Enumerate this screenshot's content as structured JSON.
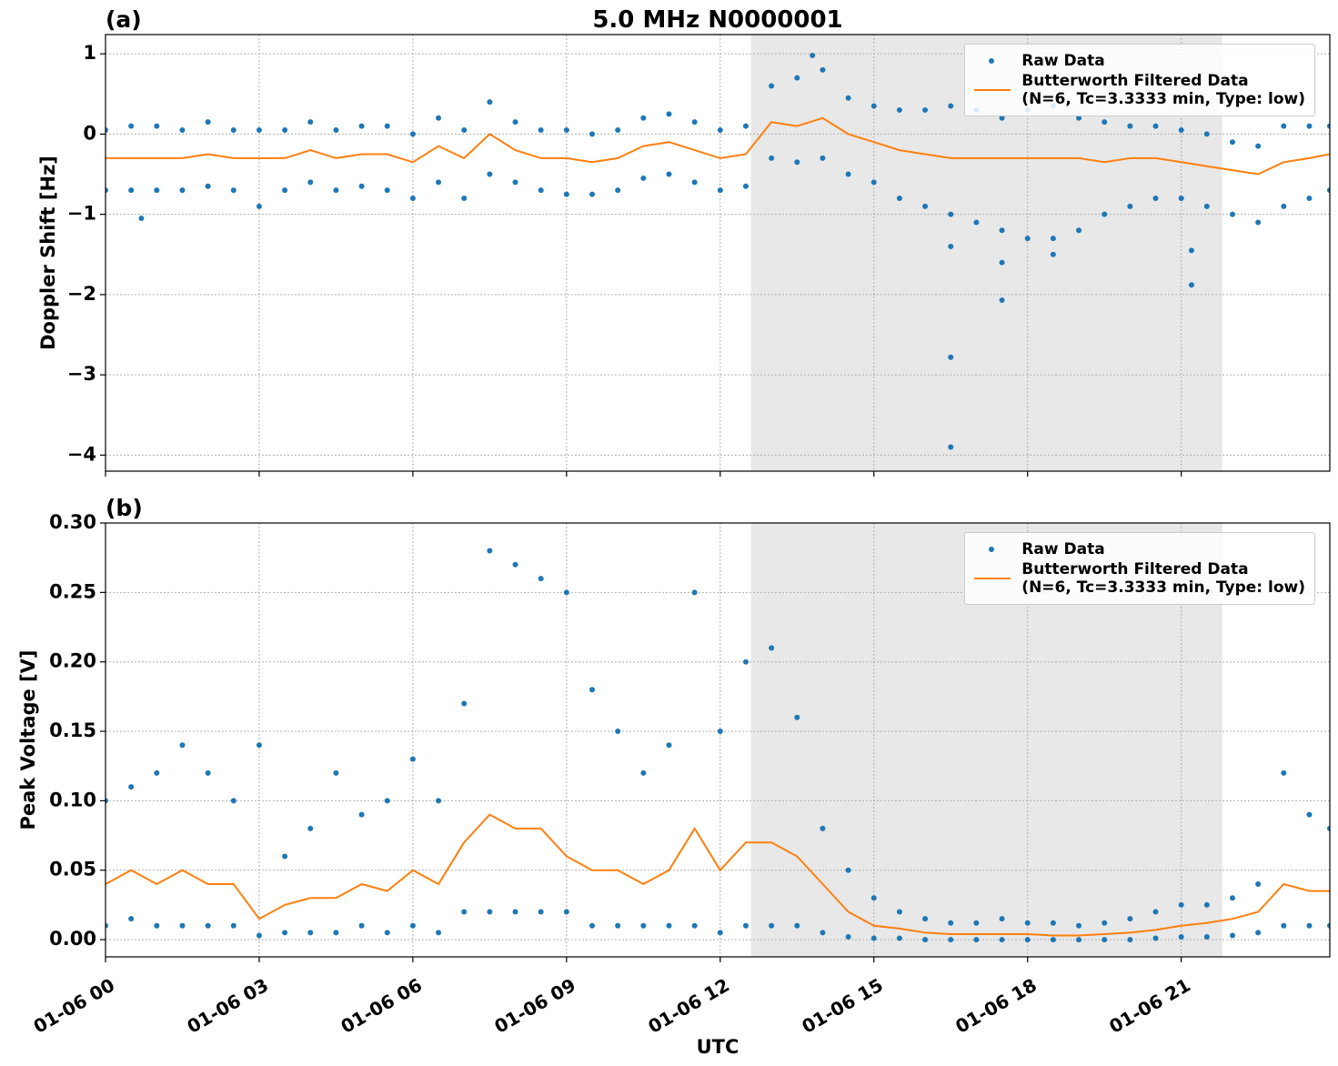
{
  "chart_data": [
    {
      "type": "scatter",
      "title": "5.0 MHz N0000001",
      "panel_label": "(a)",
      "ylabel": "Doppler Shift [Hz]",
      "xlim": [
        0,
        23.9
      ],
      "ylim": [
        -4.2,
        1.24
      ],
      "xticks": [
        0,
        3,
        6,
        9,
        12,
        15,
        18,
        21
      ],
      "yticks": [
        {
          "value": -4,
          "label": "−4"
        },
        {
          "value": -3,
          "label": "−3"
        },
        {
          "value": -2,
          "label": "−2"
        },
        {
          "value": -1,
          "label": "−1"
        },
        0,
        1
      ],
      "grid": true,
      "shaded_span": [
        12.6,
        21.8
      ],
      "shade_color": "#e8e8e8",
      "legend": "upper right",
      "series": [
        {
          "name": "Raw Data",
          "style": "scatter",
          "color": "#1f77b4",
          "x": [
            0,
            0.5,
            1,
            1.5,
            2,
            2.5,
            3,
            3.5,
            4,
            4.5,
            5,
            5.5,
            6,
            6.5,
            7,
            7.5,
            8,
            8.5,
            9,
            9.5,
            10,
            10.5,
            11,
            11.5,
            12,
            12.5,
            13,
            13.5,
            14,
            14.5,
            15,
            15.5,
            16,
            16.5,
            17,
            17.5,
            18,
            18.5,
            19,
            19.5,
            20,
            20.5,
            21,
            21.5,
            22,
            22.5,
            23,
            23.5,
            23.9,
            0,
            0.5,
            1,
            1.5,
            2,
            2.5,
            3,
            3.5,
            4,
            4.5,
            5,
            5.5,
            6,
            6.5,
            7,
            7.5,
            8,
            8.5,
            9,
            9.5,
            10,
            10.5,
            11,
            11.5,
            12,
            12.5,
            13,
            13.5,
            14,
            14.5,
            15,
            15.5,
            16,
            16.5,
            17,
            17.5,
            18,
            18.5,
            19,
            19.5,
            20,
            20.5,
            21,
            21.5,
            22,
            22.5,
            23,
            23.5,
            23.9,
            16.5,
            16.5,
            16.5,
            17.5,
            17.5,
            21.2,
            21.2,
            13.8,
            0.7,
            18.5
          ],
          "values": [
            0.05,
            0.1,
            0.1,
            0.05,
            0.15,
            0.05,
            0.05,
            0.05,
            0.15,
            0.05,
            0.1,
            0.1,
            0.0,
            0.2,
            0.05,
            0.4,
            0.15,
            0.05,
            0.05,
            0.0,
            0.05,
            0.2,
            0.25,
            0.15,
            0.05,
            0.1,
            0.6,
            0.7,
            0.8,
            0.45,
            0.35,
            0.3,
            0.3,
            0.35,
            0.3,
            0.2,
            0.3,
            0.35,
            0.2,
            0.15,
            0.1,
            0.1,
            0.05,
            0.0,
            -0.1,
            -0.15,
            0.1,
            0.1,
            0.1,
            -0.7,
            -0.7,
            -0.7,
            -0.7,
            -0.65,
            -0.7,
            -0.9,
            -0.7,
            -0.6,
            -0.7,
            -0.65,
            -0.7,
            -0.8,
            -0.6,
            -0.8,
            -0.5,
            -0.6,
            -0.7,
            -0.75,
            -0.75,
            -0.7,
            -0.55,
            -0.5,
            -0.6,
            -0.7,
            -0.65,
            -0.3,
            -0.35,
            -0.3,
            -0.5,
            -0.6,
            -0.8,
            -0.9,
            -1.0,
            -1.1,
            -1.2,
            -1.3,
            -1.3,
            -1.2,
            -1.0,
            -0.9,
            -0.8,
            -0.8,
            -0.9,
            -1.0,
            -1.1,
            -0.9,
            -0.8,
            -0.7,
            -1.4,
            -2.78,
            -3.9,
            -2.07,
            -1.6,
            -1.88,
            -1.45,
            0.98,
            -1.05,
            -1.5
          ]
        },
        {
          "name": "Butterworth Filtered Data\n(N=6, Tc=3.3333 min, Type: low)",
          "style": "line",
          "color": "#ff7f0e",
          "x": [
            0,
            0.5,
            1,
            1.5,
            2,
            2.5,
            3,
            3.5,
            4,
            4.5,
            5,
            5.5,
            6,
            6.5,
            7,
            7.5,
            8,
            8.5,
            9,
            9.5,
            10,
            10.5,
            11,
            11.5,
            12,
            12.5,
            13,
            13.5,
            14,
            14.5,
            15,
            15.5,
            16,
            16.5,
            17,
            17.5,
            18,
            18.5,
            19,
            19.5,
            20,
            20.5,
            21,
            21.5,
            22,
            22.5,
            23,
            23.5,
            23.9
          ],
          "values": [
            -0.3,
            -0.3,
            -0.3,
            -0.3,
            -0.25,
            -0.3,
            -0.3,
            -0.3,
            -0.2,
            -0.3,
            -0.25,
            -0.25,
            -0.35,
            -0.15,
            -0.3,
            0.0,
            -0.2,
            -0.3,
            -0.3,
            -0.35,
            -0.3,
            -0.15,
            -0.1,
            -0.2,
            -0.3,
            -0.25,
            0.15,
            0.1,
            0.2,
            0.0,
            -0.1,
            -0.2,
            -0.25,
            -0.3,
            -0.3,
            -0.3,
            -0.3,
            -0.3,
            -0.3,
            -0.35,
            -0.3,
            -0.3,
            -0.35,
            -0.4,
            -0.45,
            -0.5,
            -0.35,
            -0.3,
            -0.25
          ]
        }
      ]
    },
    {
      "type": "scatter",
      "panel_label": "(b)",
      "ylabel": "Peak Voltage [V]",
      "xlabel": "UTC",
      "xlim": [
        0,
        23.9
      ],
      "ylim": [
        -0.0124,
        0.3
      ],
      "xticks": [
        {
          "value": 0,
          "label": "01-06 00"
        },
        {
          "value": 3,
          "label": "01-06 03"
        },
        {
          "value": 6,
          "label": "01-06 06"
        },
        {
          "value": 9,
          "label": "01-06 09"
        },
        {
          "value": 12,
          "label": "01-06 12"
        },
        {
          "value": 15,
          "label": "01-06 15"
        },
        {
          "value": 18,
          "label": "01-06 18"
        },
        {
          "value": 21,
          "label": "01-06 21"
        }
      ],
      "yticks": [
        {
          "value": 0,
          "label": "0.00"
        },
        {
          "value": 0.05,
          "label": "0.05"
        },
        {
          "value": 0.1,
          "label": "0.10"
        },
        {
          "value": 0.15,
          "label": "0.15"
        },
        {
          "value": 0.2,
          "label": "0.20"
        },
        {
          "value": 0.25,
          "label": "0.25"
        },
        {
          "value": 0.3,
          "label": "0.30"
        }
      ],
      "grid": true,
      "shaded_span": [
        12.6,
        21.8
      ],
      "shade_color": "#e8e8e8",
      "legend": "upper right",
      "series": [
        {
          "name": "Raw Data",
          "style": "scatter",
          "color": "#1f77b4",
          "x": [
            0,
            0.5,
            1,
            1.5,
            2,
            2.5,
            3,
            3.5,
            4,
            4.5,
            5,
            5.5,
            6,
            6.5,
            7,
            7.5,
            8,
            8.5,
            9,
            9.5,
            10,
            10.5,
            11,
            11.5,
            12,
            12.5,
            13,
            13.5,
            14,
            14.5,
            15,
            15.5,
            16,
            16.5,
            17,
            17.5,
            18,
            18.5,
            19,
            19.5,
            20,
            20.5,
            21,
            21.5,
            22,
            22.5,
            23,
            23.5,
            23.9,
            0,
            0.5,
            1,
            1.5,
            2,
            2.5,
            3,
            3.5,
            4,
            4.5,
            5,
            5.5,
            6,
            6.5,
            7,
            7.5,
            8,
            8.5,
            9,
            9.5,
            10,
            10.5,
            11,
            11.5,
            12,
            12.5,
            13,
            13.5,
            14,
            14.5,
            15,
            15.5,
            16,
            16.5,
            17,
            17.5,
            18,
            18.5,
            19,
            19.5,
            20,
            20.5,
            21,
            21.5,
            22,
            22.5,
            23,
            23.5,
            23.9
          ],
          "values": [
            0.1,
            0.11,
            0.12,
            0.14,
            0.12,
            0.1,
            0.14,
            0.06,
            0.08,
            0.12,
            0.09,
            0.1,
            0.13,
            0.1,
            0.17,
            0.28,
            0.27,
            0.26,
            0.25,
            0.18,
            0.15,
            0.12,
            0.14,
            0.25,
            0.15,
            0.2,
            0.21,
            0.16,
            0.08,
            0.05,
            0.03,
            0.02,
            0.015,
            0.012,
            0.012,
            0.015,
            0.012,
            0.012,
            0.01,
            0.012,
            0.015,
            0.02,
            0.025,
            0.025,
            0.03,
            0.04,
            0.12,
            0.09,
            0.08,
            0.01,
            0.015,
            0.01,
            0.01,
            0.01,
            0.01,
            0.003,
            0.005,
            0.005,
            0.005,
            0.01,
            0.005,
            0.01,
            0.005,
            0.02,
            0.02,
            0.02,
            0.02,
            0.02,
            0.01,
            0.01,
            0.01,
            0.01,
            0.01,
            0.005,
            0.01,
            0.01,
            0.01,
            0.005,
            0.002,
            0.001,
            0.001,
            0,
            0,
            0,
            0,
            0,
            0,
            0,
            0,
            0,
            0.001,
            0.002,
            0.002,
            0.003,
            0.005,
            0.01,
            0.01,
            0.01
          ]
        },
        {
          "name": "Butterworth Filtered Data\n(N=6, Tc=3.3333 min, Type: low)",
          "style": "line",
          "color": "#ff7f0e",
          "x": [
            0,
            0.5,
            1,
            1.5,
            2,
            2.5,
            3,
            3.5,
            4,
            4.5,
            5,
            5.5,
            6,
            6.5,
            7,
            7.5,
            8,
            8.5,
            9,
            9.5,
            10,
            10.5,
            11,
            11.5,
            12,
            12.5,
            13,
            13.5,
            14,
            14.5,
            15,
            15.5,
            16,
            16.5,
            17,
            17.5,
            18,
            18.5,
            19,
            19.5,
            20,
            20.5,
            21,
            21.5,
            22,
            22.5,
            23,
            23.5,
            23.9
          ],
          "values": [
            0.04,
            0.05,
            0.04,
            0.05,
            0.04,
            0.04,
            0.015,
            0.025,
            0.03,
            0.03,
            0.04,
            0.035,
            0.05,
            0.04,
            0.07,
            0.09,
            0.08,
            0.08,
            0.06,
            0.05,
            0.05,
            0.04,
            0.05,
            0.08,
            0.05,
            0.07,
            0.07,
            0.06,
            0.04,
            0.02,
            0.01,
            0.008,
            0.005,
            0.004,
            0.004,
            0.004,
            0.004,
            0.003,
            0.003,
            0.004,
            0.005,
            0.007,
            0.01,
            0.012,
            0.015,
            0.02,
            0.04,
            0.035,
            0.035
          ]
        }
      ]
    }
  ]
}
